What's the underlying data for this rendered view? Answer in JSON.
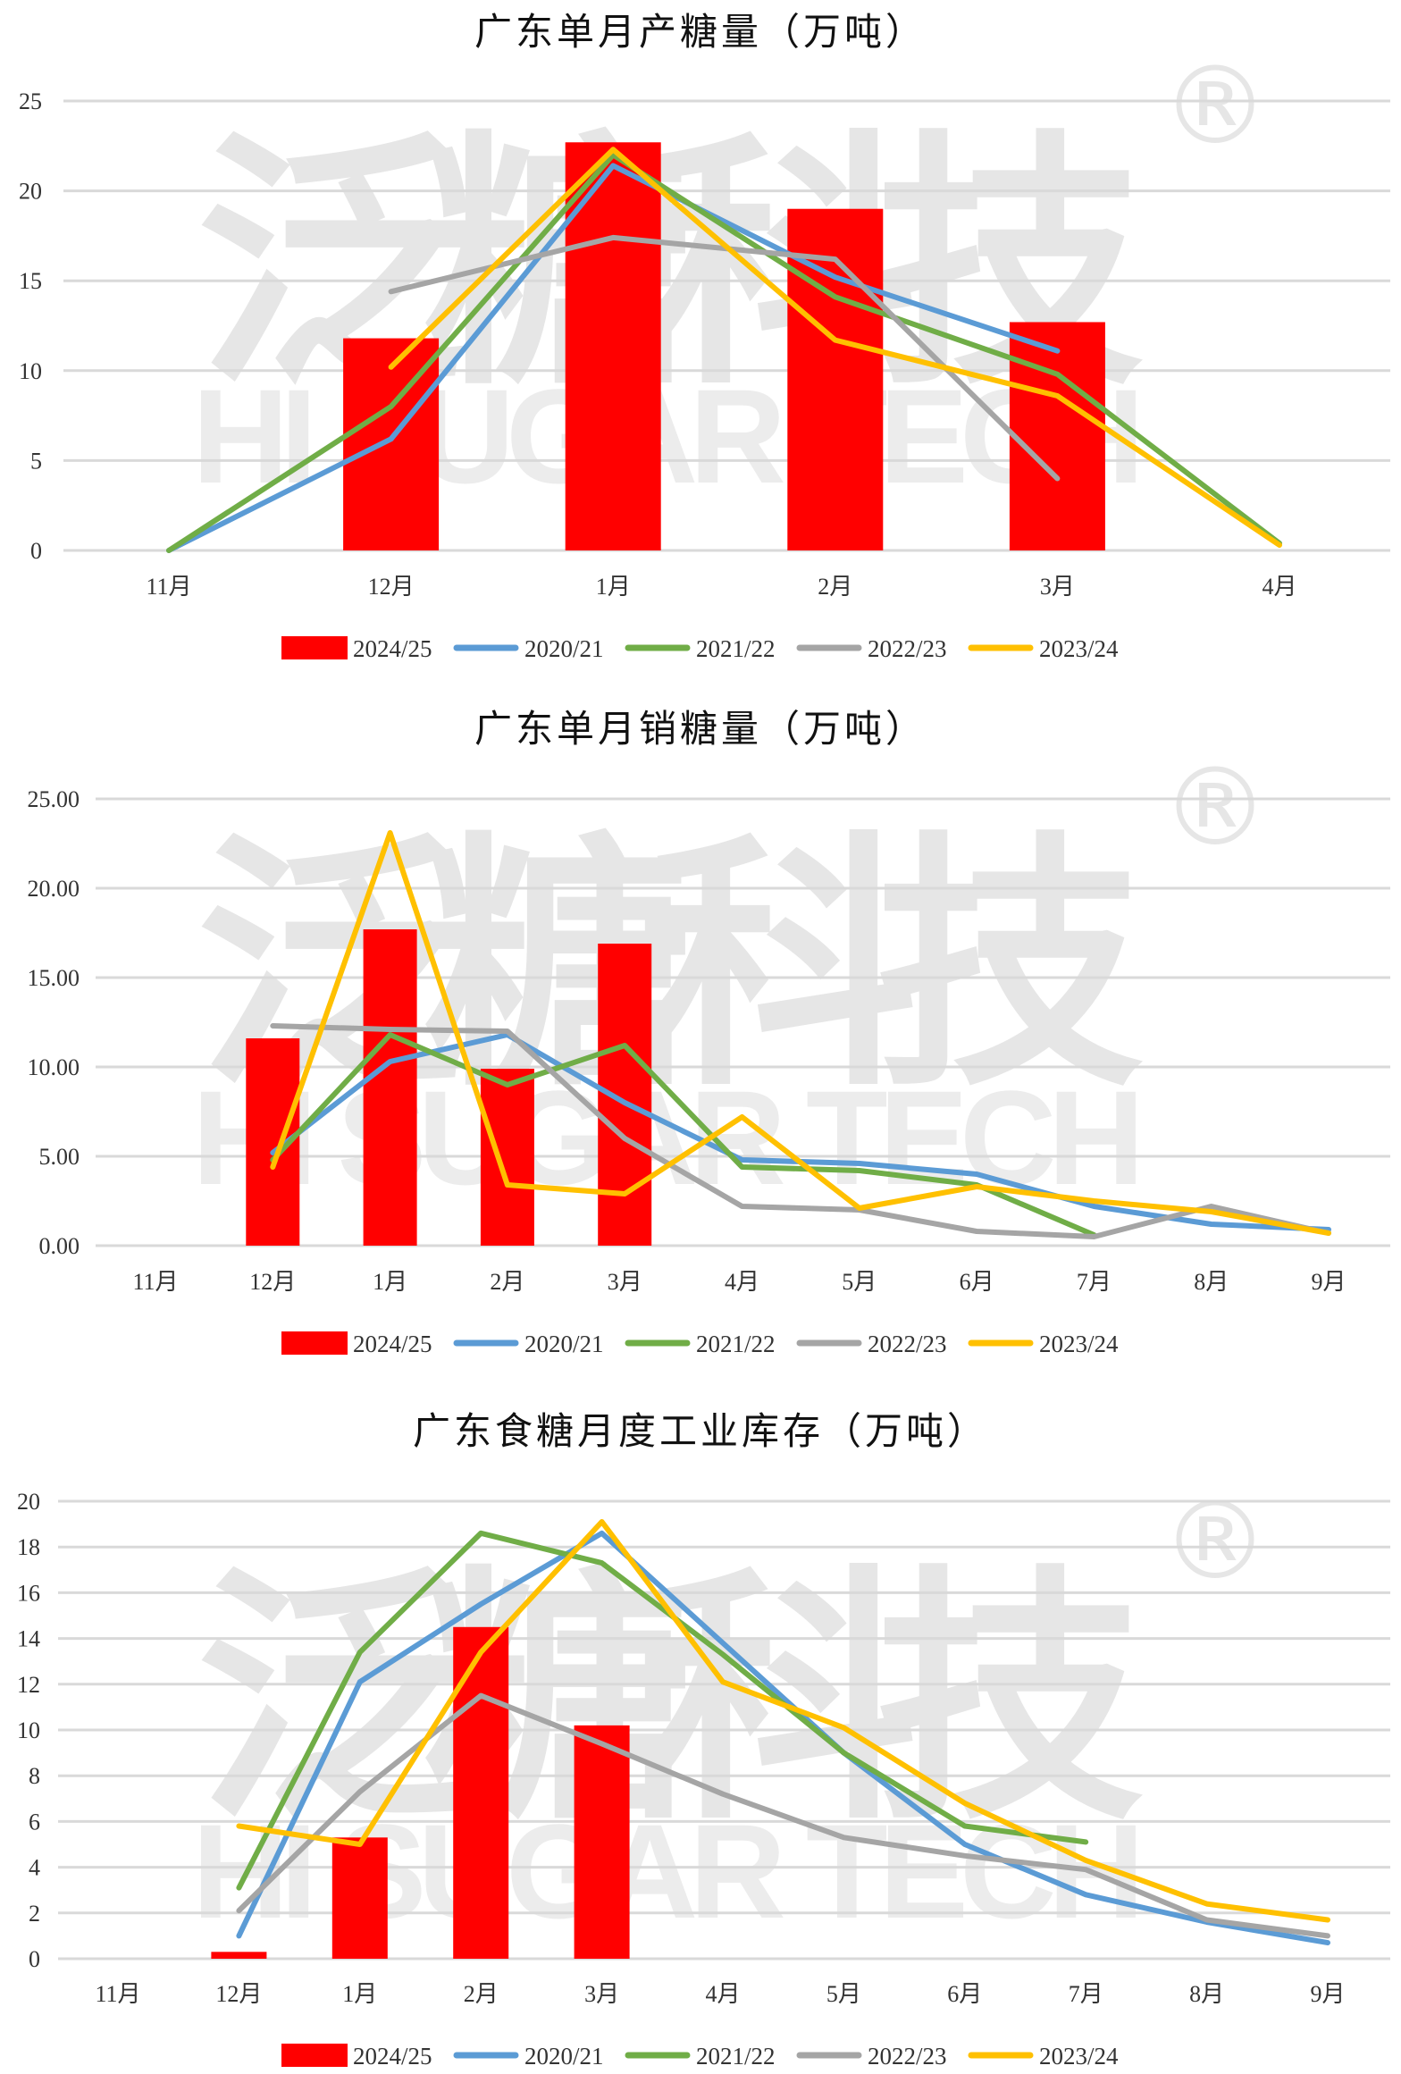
{
  "watermark": {
    "chinese": "泛糖科技",
    "english": "HI SUGAR TECH",
    "mark": "®"
  },
  "colors": {
    "2024/25": "#ff0000",
    "2020/21": "#5b9bd5",
    "2021/22": "#70ad47",
    "2022/23": "#a5a5a5",
    "2023/24": "#ffc000",
    "grid": "#d9d9d9"
  },
  "chart_data": [
    {
      "type": "bar+line",
      "title": "广东单月产糖量（万吨）",
      "categories": [
        "11月",
        "12月",
        "1月",
        "2月",
        "3月",
        "4月"
      ],
      "ylim": [
        0,
        25
      ],
      "yticks": [
        "0",
        "5",
        "10",
        "15",
        "20",
        "25"
      ],
      "ytick_values": [
        0,
        5,
        10,
        15,
        20,
        25
      ],
      "grid": true,
      "legend": "bottom",
      "bar_series": {
        "name": "2024/25",
        "values": [
          null,
          11.8,
          22.7,
          19.0,
          12.7,
          null
        ]
      },
      "line_series": [
        {
          "name": "2020/21",
          "values": [
            0,
            6.2,
            21.4,
            15.2,
            11.1,
            null
          ]
        },
        {
          "name": "2021/22",
          "values": [
            0,
            8.0,
            22.0,
            14.1,
            9.8,
            0.4
          ]
        },
        {
          "name": "2022/23",
          "values": [
            null,
            14.4,
            17.4,
            16.2,
            4.0,
            null
          ]
        },
        {
          "name": "2023/24",
          "values": [
            null,
            10.2,
            22.3,
            11.7,
            8.6,
            0.3
          ]
        }
      ]
    },
    {
      "type": "bar+line",
      "title": "广东单月销糖量（万吨）",
      "categories": [
        "11月",
        "12月",
        "1月",
        "2月",
        "3月",
        "4月",
        "5月",
        "6月",
        "7月",
        "8月",
        "9月"
      ],
      "ylim": [
        0,
        25
      ],
      "yticks": [
        "0.00",
        "5.00",
        "10.00",
        "15.00",
        "20.00",
        "25.00"
      ],
      "ytick_values": [
        0,
        5,
        10,
        15,
        20,
        25
      ],
      "grid": true,
      "legend": "bottom",
      "bar_series": {
        "name": "2024/25",
        "values": [
          null,
          11.6,
          17.7,
          9.9,
          16.9,
          null,
          null,
          null,
          null,
          null,
          null
        ]
      },
      "line_series": [
        {
          "name": "2020/21",
          "values": [
            null,
            5.2,
            10.3,
            11.8,
            8.0,
            4.8,
            4.6,
            4.0,
            2.2,
            1.2,
            0.9
          ]
        },
        {
          "name": "2021/22",
          "values": [
            null,
            4.8,
            11.8,
            9.0,
            11.2,
            4.4,
            4.2,
            3.4,
            0.6,
            null,
            null
          ]
        },
        {
          "name": "2022/23",
          "values": [
            null,
            12.3,
            12.1,
            12.0,
            6.0,
            2.2,
            2.0,
            0.8,
            0.5,
            2.2,
            0.7
          ]
        },
        {
          "name": "2023/24",
          "values": [
            null,
            4.4,
            23.1,
            3.4,
            2.9,
            7.2,
            2.1,
            3.3,
            2.5,
            1.9,
            0.7
          ]
        }
      ]
    },
    {
      "type": "bar+line",
      "title": "广东食糖月度工业库存（万吨）",
      "categories": [
        "11月",
        "12月",
        "1月",
        "2月",
        "3月",
        "4月",
        "5月",
        "6月",
        "7月",
        "8月",
        "9月"
      ],
      "ylim": [
        0,
        20
      ],
      "yticks": [
        "0",
        "2",
        "4",
        "6",
        "8",
        "10",
        "12",
        "14",
        "16",
        "18",
        "20"
      ],
      "ytick_values": [
        0,
        2,
        4,
        6,
        8,
        10,
        12,
        14,
        16,
        18,
        20
      ],
      "grid": true,
      "legend": "bottom",
      "bar_series": {
        "name": "2024/25",
        "values": [
          null,
          0.3,
          5.3,
          14.5,
          10.2,
          null,
          null,
          null,
          null,
          null,
          null
        ]
      },
      "line_series": [
        {
          "name": "2020/21",
          "values": [
            null,
            1.0,
            12.1,
            15.5,
            18.6,
            13.8,
            9.0,
            5.0,
            2.8,
            1.6,
            0.7
          ]
        },
        {
          "name": "2021/22",
          "values": [
            null,
            3.1,
            13.4,
            18.6,
            17.3,
            13.3,
            9.0,
            5.8,
            5.1,
            null,
            null
          ]
        },
        {
          "name": "2022/23",
          "values": [
            null,
            2.1,
            7.3,
            11.5,
            9.4,
            7.2,
            5.3,
            4.5,
            3.9,
            1.7,
            1.0
          ]
        },
        {
          "name": "2023/24",
          "values": [
            null,
            5.8,
            5.0,
            13.4,
            19.1,
            12.1,
            10.1,
            6.8,
            4.3,
            2.4,
            1.7
          ]
        }
      ]
    }
  ]
}
